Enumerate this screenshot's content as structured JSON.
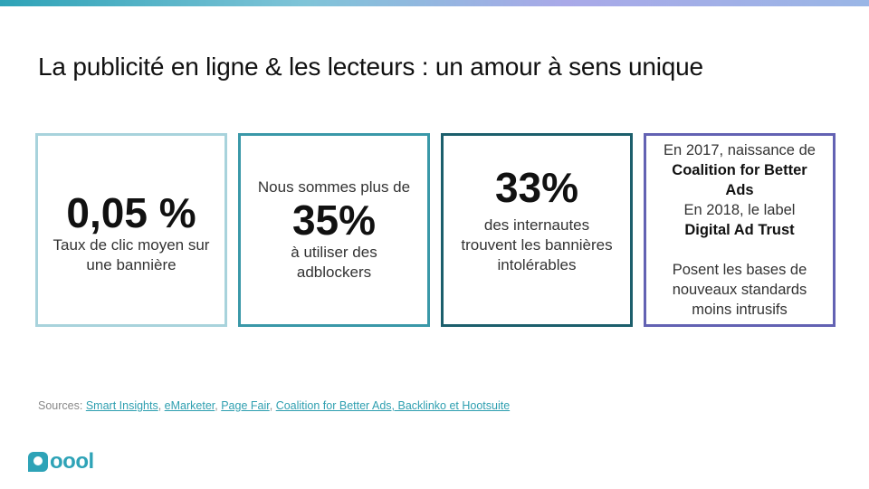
{
  "title": "La publicité en ligne & les lecteurs : un amour à sens unique",
  "cards": [
    {
      "big": "0,05 %",
      "line1": "Taux de clic moyen sur",
      "line2": "une bannière"
    },
    {
      "pre": "Nous sommes plus de",
      "big": "35%",
      "line1": "à utiliser des",
      "line2": "adblockers"
    },
    {
      "big": "33%",
      "line1": "des internautes",
      "line2": "trouvent les bannières",
      "line3": "intolérables"
    },
    {
      "l1": "En 2017, naissance de",
      "b1": "Coalition for Better",
      "b2": "Ads",
      "l2": "En 2018, le label",
      "b3": "Digital Ad Trust",
      "l3": "Posent les bases de",
      "l4": "nouveaux standards",
      "l5": "moins intrusifs"
    }
  ],
  "sources": {
    "label": "Sources:",
    "links": [
      "Smart Insights",
      "eMarketer",
      "Page Fair",
      "Coalition for Better Ads, Backlinko et Hootsuite"
    ]
  },
  "logo": {
    "text": "oool",
    "brand_color": "#2ea3b7"
  }
}
